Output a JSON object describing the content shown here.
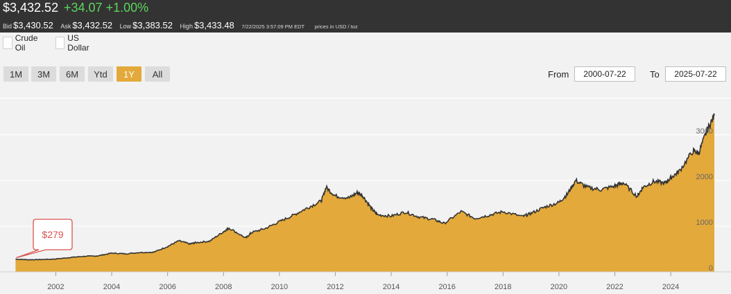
{
  "quote": {
    "price": "$3,432.52",
    "change": "+34.07 +1.00%",
    "bid_label": "Bid",
    "bid": "$3,430.52",
    "ask_label": "Ask",
    "ask": "$3,432.52",
    "low_label": "Low",
    "low": "$3,383.52",
    "high_label": "High",
    "high": "$3,433.48",
    "timestamp": "7/22/2025 3:57:09 PM EDT",
    "units": "prices in USD / toz"
  },
  "overlays": [
    {
      "label": "Crude Oil",
      "checked": false
    },
    {
      "label": "US Dollar",
      "checked": false
    }
  ],
  "ranges": [
    {
      "label": "1M",
      "active": false
    },
    {
      "label": "3M",
      "active": false
    },
    {
      "label": "6M",
      "active": false
    },
    {
      "label": "Ytd",
      "active": false
    },
    {
      "label": "1Y",
      "active": true
    },
    {
      "label": "All",
      "active": false
    }
  ],
  "date_range": {
    "from_label": "From",
    "from": "2000-07-22",
    "to_label": "To",
    "to": "2025-07-22"
  },
  "colors": {
    "area_fill": "#e3a93b",
    "line": "#333333",
    "callout": "#d9534f",
    "grid": "#ffffff"
  },
  "chart_data": {
    "type": "area",
    "title": "",
    "xlabel": "",
    "ylabel": "",
    "x_ticks": [
      "2002",
      "2004",
      "2006",
      "2008",
      "2010",
      "2012",
      "2014",
      "2016",
      "2018",
      "2020",
      "2022",
      "2024"
    ],
    "y_ticks": [
      "0",
      "1000",
      "2000",
      "3000"
    ],
    "xlim": [
      2000.55,
      2025.56
    ],
    "ylim": [
      0,
      3800
    ],
    "grid": true,
    "callout": {
      "text": "$279",
      "x": 2000.56,
      "y": 279
    },
    "series": [
      {
        "x": [
          2000.56,
          2001.0,
          2001.5,
          2002.0,
          2002.5,
          2003.0,
          2003.5,
          2004.0,
          2004.5,
          2005.0,
          2005.5,
          2006.0,
          2006.4,
          2006.8,
          2007.0,
          2007.5,
          2008.0,
          2008.2,
          2008.8,
          2009.0,
          2009.5,
          2010.0,
          2010.5,
          2011.0,
          2011.5,
          2011.67,
          2012.0,
          2012.5,
          2012.8,
          2013.0,
          2013.3,
          2013.5,
          2014.0,
          2014.5,
          2015.0,
          2015.5,
          2015.9,
          2016.5,
          2017.0,
          2017.5,
          2018.0,
          2018.7,
          2019.0,
          2019.5,
          2020.0,
          2020.3,
          2020.6,
          2021.0,
          2021.5,
          2022.0,
          2022.3,
          2022.8,
          2023.0,
          2023.4,
          2023.8,
          2024.0,
          2024.3,
          2024.8,
          2025.0,
          2025.3,
          2025.56
        ],
        "y": [
          279,
          265,
          270,
          282,
          314,
          340,
          350,
          410,
          395,
          425,
          430,
          555,
          680,
          610,
          640,
          670,
          880,
          960,
          740,
          860,
          950,
          1100,
          1240,
          1400,
          1550,
          1850,
          1660,
          1620,
          1740,
          1650,
          1380,
          1250,
          1220,
          1310,
          1200,
          1150,
          1060,
          1320,
          1170,
          1240,
          1320,
          1210,
          1280,
          1420,
          1520,
          1700,
          2000,
          1850,
          1800,
          1880,
          1950,
          1650,
          1850,
          1980,
          1940,
          2060,
          2200,
          2650,
          2600,
          3100,
          3420
        ]
      }
    ]
  }
}
